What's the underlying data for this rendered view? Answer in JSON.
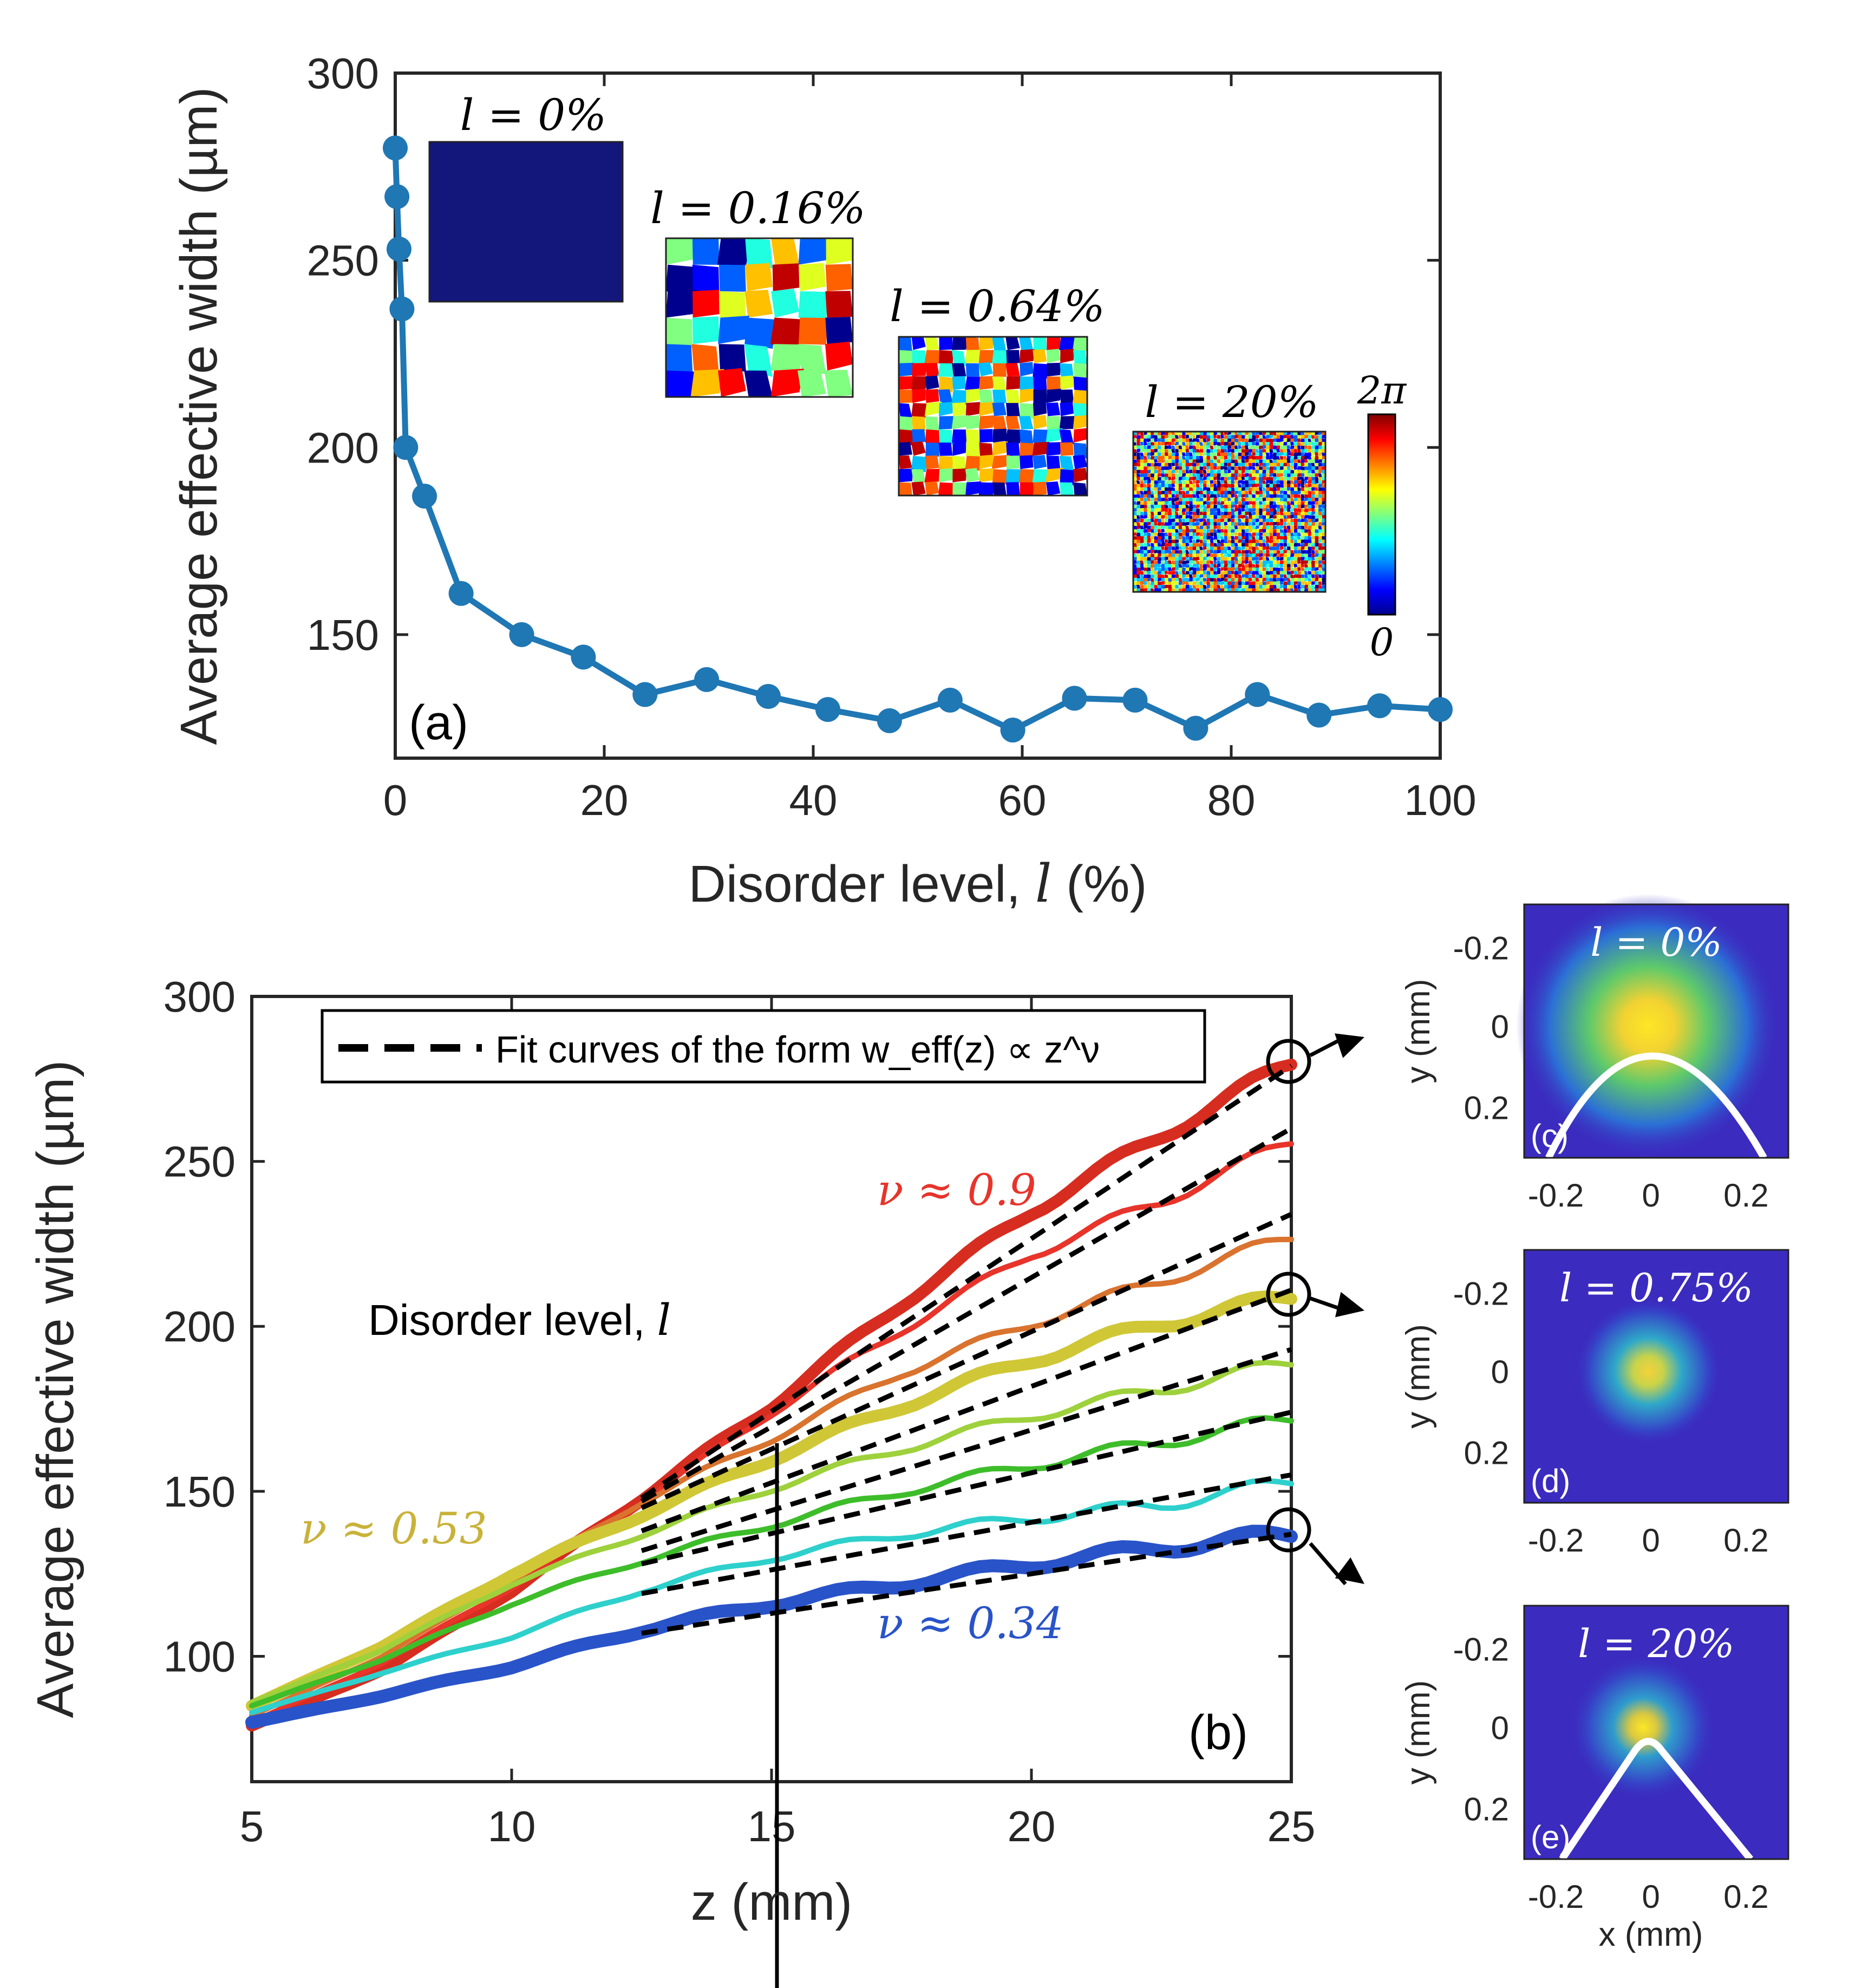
{
  "chart_data": [
    {
      "panel": "(a)",
      "type": "line",
      "xlabel": "Disorder level, l (%)",
      "ylabel": "Average effective width (µm)",
      "xlim": [
        0,
        100
      ],
      "ylim": [
        117,
        300
      ],
      "xticks": [
        0,
        20,
        40,
        60,
        80,
        100
      ],
      "yticks": [
        150,
        200,
        250,
        300
      ],
      "color": "#1f77b4",
      "x": [
        0,
        0.16,
        0.36,
        0.64,
        1,
        2.8,
        6.3,
        12.1,
        18,
        23.9,
        29.8,
        35.7,
        41.4,
        47.3,
        53.1,
        59.1,
        65,
        70.8,
        76.6,
        82.5,
        88.4,
        94.2,
        100
      ],
      "y": [
        280,
        267,
        253,
        237,
        200,
        187,
        161,
        150,
        144,
        134,
        138,
        133.5,
        130,
        127,
        132.5,
        124.5,
        133,
        132.5,
        125,
        134,
        128.5,
        131,
        130
      ],
      "colorbar": {
        "min_label": "0",
        "max_label": "2π"
      },
      "insets": [
        {
          "label": "l = 0%",
          "pattern": "uniform"
        },
        {
          "label": "l = 0.16%",
          "pattern": "voronoi-coarse"
        },
        {
          "label": "l = 0.64%",
          "pattern": "voronoi-medium"
        },
        {
          "label": "l = 20%",
          "pattern": "voronoi-fine"
        }
      ]
    },
    {
      "panel": "(b)",
      "type": "line",
      "xlabel": "z (mm)",
      "ylabel": "Average effective width (µm)",
      "xlim": [
        5,
        25
      ],
      "ylim": [
        62,
        300
      ],
      "xticks": [
        5,
        10,
        15,
        20,
        25
      ],
      "yticks": [
        100,
        150,
        200,
        250,
        300
      ],
      "x": [
        5,
        7.5,
        10,
        12.5,
        15,
        17.5,
        20,
        22.5,
        25
      ],
      "series": [
        {
          "name": "red",
          "color": "#d62d20",
          "width": 22,
          "values": [
            79,
            96,
            120,
            148,
            176,
            207,
            235,
            258,
            280
          ]
        },
        {
          "name": "red-thin",
          "color": "#e8342a",
          "width": 10,
          "values": [
            80,
            98,
            121,
            147,
            174,
            199,
            222,
            238,
            256
          ]
        },
        {
          "name": "orange",
          "color": "#d9732e",
          "width": 10,
          "values": [
            82,
            100,
            123,
            147,
            166,
            186,
            201,
            214,
            227
          ]
        },
        {
          "name": "yellow",
          "color": "#cfc736",
          "width": 22,
          "values": [
            85,
            103,
            125,
            143,
            160,
            176,
            190,
            201,
            209
          ]
        },
        {
          "name": "light-green",
          "color": "#9ed13c",
          "width": 10,
          "values": [
            86,
            102,
            122,
            137,
            151,
            163,
            173,
            181,
            189
          ]
        },
        {
          "name": "green",
          "color": "#3ebd2a",
          "width": 10,
          "values": [
            85,
            99,
            116,
            129,
            140,
            150,
            158,
            165,
            172
          ]
        },
        {
          "name": "cyan",
          "color": "#2ed0cc",
          "width": 10,
          "values": [
            83,
            95,
            106,
            120,
            130,
            137,
            142,
            146,
            153
          ]
        },
        {
          "name": "blue",
          "color": "#2953c8",
          "width": 24,
          "values": [
            80,
            88,
            97,
            108,
            116,
            122,
            128,
            133,
            137
          ]
        }
      ],
      "fits": [
        {
          "x0": 12.5,
          "x1": 25,
          "y0": 148,
          "y1": 279
        },
        {
          "x0": 12.5,
          "x1": 25,
          "y0": 147,
          "y1": 260
        },
        {
          "x0": 12.5,
          "x1": 25,
          "y0": 145,
          "y1": 234
        },
        {
          "x0": 12.5,
          "x1": 25,
          "y0": 138,
          "y1": 211
        },
        {
          "x0": 12.5,
          "x1": 25,
          "y0": 132,
          "y1": 193
        },
        {
          "x0": 12.5,
          "x1": 25,
          "y0": 128,
          "y1": 174
        },
        {
          "x0": 12.5,
          "x1": 25,
          "y0": 119,
          "y1": 155
        },
        {
          "x0": 12.5,
          "x1": 25,
          "y0": 107,
          "y1": 137
        }
      ],
      "legend": "Fit curves of the form w_eff(z) ∝ z^ν",
      "annotations": {
        "nu_red": "ν ≈ 0.9",
        "nu_yellow": "ν ≈ 0.53",
        "nu_blue": "ν ≈ 0.34",
        "arrow_label": "Disorder level, l"
      },
      "annotation_colors": {
        "nu_red": "#e8342a",
        "nu_yellow": "#c9b23a",
        "nu_blue": "#2953c8"
      }
    },
    {
      "panel": "(c)-(e)",
      "type": "heatmap",
      "xlabel": "x (mm)",
      "ylabel": "y (mm)",
      "xticks": [
        "-0.2",
        "0",
        "0.2"
      ],
      "yticks": [
        "-0.2",
        "0",
        "0.2"
      ],
      "panels": [
        {
          "tag": "(c)",
          "label": "l = 0%",
          "profile": true
        },
        {
          "tag": "(d)",
          "label": "l = 0.75%",
          "profile": false
        },
        {
          "tag": "(e)",
          "label": "l = 20%",
          "profile": true
        }
      ]
    }
  ],
  "text": {
    "a": {
      "tag": "(a)",
      "xlabel_prefix": "Disorder level, ",
      "xlabel_var": "l",
      "xlabel_suffix": " (%)",
      "ylabel": "Average effective width (µm)"
    },
    "b": {
      "tag": "(b)",
      "xlabel": "z (mm)",
      "ylabel": "Average effective width (µm)",
      "legend_prefix": "Fit curves of the form ",
      "arrow_prefix": "Disorder level, ",
      "arrow_var": "l"
    },
    "insets": {
      "c_xlabel": "x (mm)",
      "ylabel": "y (mm)"
    }
  }
}
